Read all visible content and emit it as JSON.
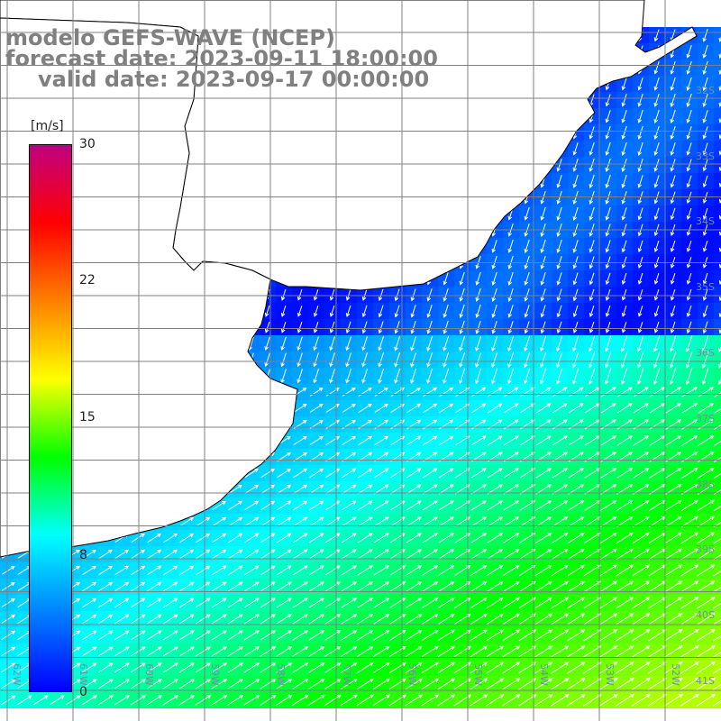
{
  "title": {
    "model": "modelo GEFS-WAVE (NCEP)",
    "forecast": "forecast date: 2023-09-11 18:00:00",
    "valid": "valid date: 2023-09-17 00:00:00"
  },
  "colorbar": {
    "unit": "[m/s]",
    "ticks": [
      "30",
      "22",
      "15",
      "8",
      "0"
    ],
    "min": 0,
    "max": 30,
    "colors": [
      "#0000ff",
      "#0080ff",
      "#00ffff",
      "#00ff00",
      "#ffff00",
      "#ff8000",
      "#ff0000",
      "#c00080"
    ]
  },
  "map": {
    "lat_labels": [
      "32S",
      "33S",
      "34S",
      "35S",
      "36S",
      "37S",
      "38S",
      "39S",
      "40S",
      "41S"
    ],
    "lon_labels": [
      "62W",
      "61W",
      "60W",
      "59W",
      "58W",
      "57W",
      "56W",
      "55W",
      "54W",
      "53W",
      "52W"
    ],
    "land_color": "#ffffff",
    "grid_color": "#808080",
    "arrow_color": "#ffffff"
  }
}
